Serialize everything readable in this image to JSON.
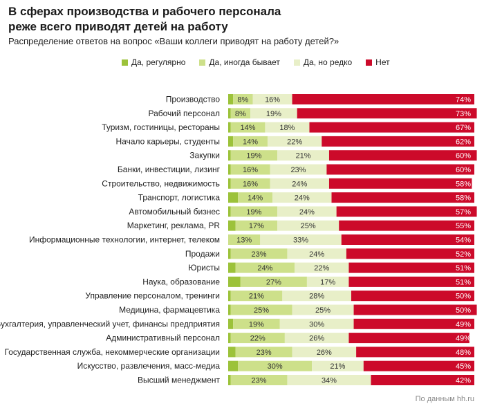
{
  "header": {
    "title_line1": "В сферах производства и рабочего персонала",
    "title_line2": "реже всего приводят детей на работу",
    "subtitle": "Распределение ответов на вопрос «Ваши коллеги приводят на работу детей?»"
  },
  "source": "По данным hh.ru",
  "colors": {
    "regularly": "#9cc23a",
    "sometimes": "#cde08a",
    "rarely": "#e8efc8",
    "no": "#cc0a2a"
  },
  "chart_data": {
    "type": "bar",
    "orientation": "horizontal",
    "stacked": true,
    "title": "В сферах производства и рабочего персонала реже всего приводят детей на работу",
    "subtitle": "Распределение ответов на вопрос «Ваши коллеги приводят на работу детей?»",
    "xlim": [
      0,
      100
    ],
    "unit": "%",
    "legend_position": "top",
    "categories": [
      "Производство",
      "Рабочий персонал",
      "Туризм, гостиницы, рестораны",
      "Начало карьеры, студенты",
      "Закупки",
      "Банки, инвестиции, лизинг",
      "Строительство, недвижимость",
      "Транспорт, логистика",
      "Автомобильный бизнес",
      "Маркетинг, реклама, PR",
      "Информационные технологии, интернет, телеком",
      "Продажи",
      "Юристы",
      "Наука, образование",
      "Управление персоналом, тренинги",
      "Медицина, фармацевтика",
      "Бухгалтерия, управленческий учет, финансы предприятия",
      "Административный персонал",
      "Государственная служба, некоммерческие организации",
      "Искусство, развлечения, масс-медиа",
      "Высший менеджмент"
    ],
    "series": [
      {
        "key": "regularly",
        "name": "Да, регулярно",
        "values": [
          2,
          1,
          1,
          2,
          1,
          1,
          1,
          4,
          1,
          3,
          0,
          1,
          3,
          5,
          1,
          1,
          2,
          1,
          3,
          4,
          1
        ]
      },
      {
        "key": "sometimes",
        "name": "Да, иногда бывает",
        "values": [
          8,
          8,
          14,
          14,
          19,
          16,
          16,
          14,
          19,
          17,
          13,
          23,
          24,
          27,
          21,
          25,
          19,
          22,
          23,
          30,
          23
        ]
      },
      {
        "key": "rarely",
        "name": "Да, но редко",
        "values": [
          16,
          19,
          18,
          22,
          21,
          23,
          24,
          24,
          24,
          25,
          33,
          24,
          22,
          17,
          28,
          25,
          30,
          26,
          26,
          21,
          34
        ]
      },
      {
        "key": "no",
        "name": "Нет",
        "values": [
          74,
          73,
          67,
          62,
          60,
          60,
          58,
          58,
          57,
          55,
          54,
          52,
          51,
          51,
          50,
          50,
          49,
          49,
          48,
          45,
          42
        ]
      }
    ]
  }
}
